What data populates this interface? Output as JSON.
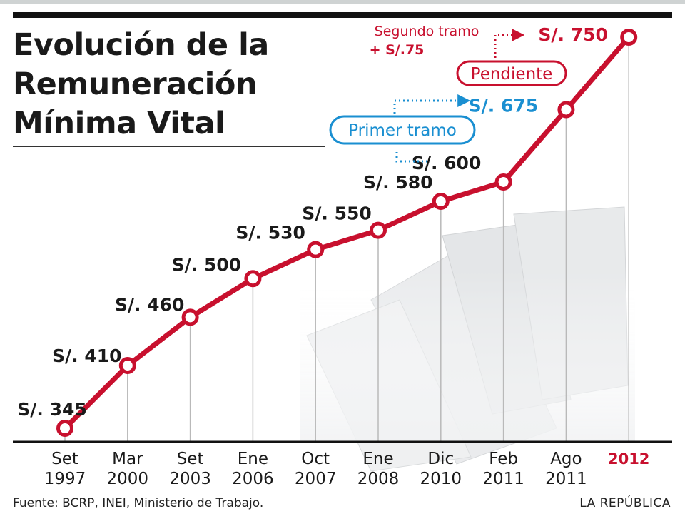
{
  "header": {
    "title_lines": [
      "Evolución de la",
      "Remuneración",
      "Mínima Vital"
    ]
  },
  "footer": {
    "source": "Fuente: BCRP, INEI, Ministerio de Trabajo.",
    "brand": "LA REPÚBLICA"
  },
  "annotations": {
    "first_tranche": "Primer tramo",
    "pending": "Pendiente",
    "second_tranche_line1": "Segundo tramo",
    "second_tranche_line2": "+ S/.75"
  },
  "colors": {
    "line": "#c8102e",
    "accent_blue": "#1a8fd1",
    "highlight_label": "#c8102e",
    "grid": "#b9b9b9",
    "text": "#1a1a1a"
  },
  "chart_data": {
    "type": "line",
    "title": "Evolución de la Remuneración Mínima Vital",
    "xlabel": "",
    "ylabel": "",
    "categories": [
      [
        "Set",
        "1997"
      ],
      [
        "Mar",
        "2000"
      ],
      [
        "Set",
        "2003"
      ],
      [
        "Ene",
        "2006"
      ],
      [
        "Oct",
        "2007"
      ],
      [
        "Ene",
        "2008"
      ],
      [
        "Dic",
        "2010"
      ],
      [
        "Feb",
        "2011"
      ],
      [
        "Ago",
        "2011"
      ],
      [
        "2012"
      ]
    ],
    "values": [
      345,
      410,
      460,
      500,
      530,
      550,
      580,
      600,
      675,
      750
    ],
    "labels": [
      "S/. 345",
      "S/. 410",
      "S/. 460",
      "S/. 500",
      "S/. 530",
      "S/. 550",
      "S/. 580",
      "S/. 600",
      "S/. 675",
      "S/. 750"
    ],
    "ylim": [
      345,
      750
    ],
    "grid": "vertical",
    "highlight_index": 9,
    "highlight_color": "#c8102e"
  }
}
